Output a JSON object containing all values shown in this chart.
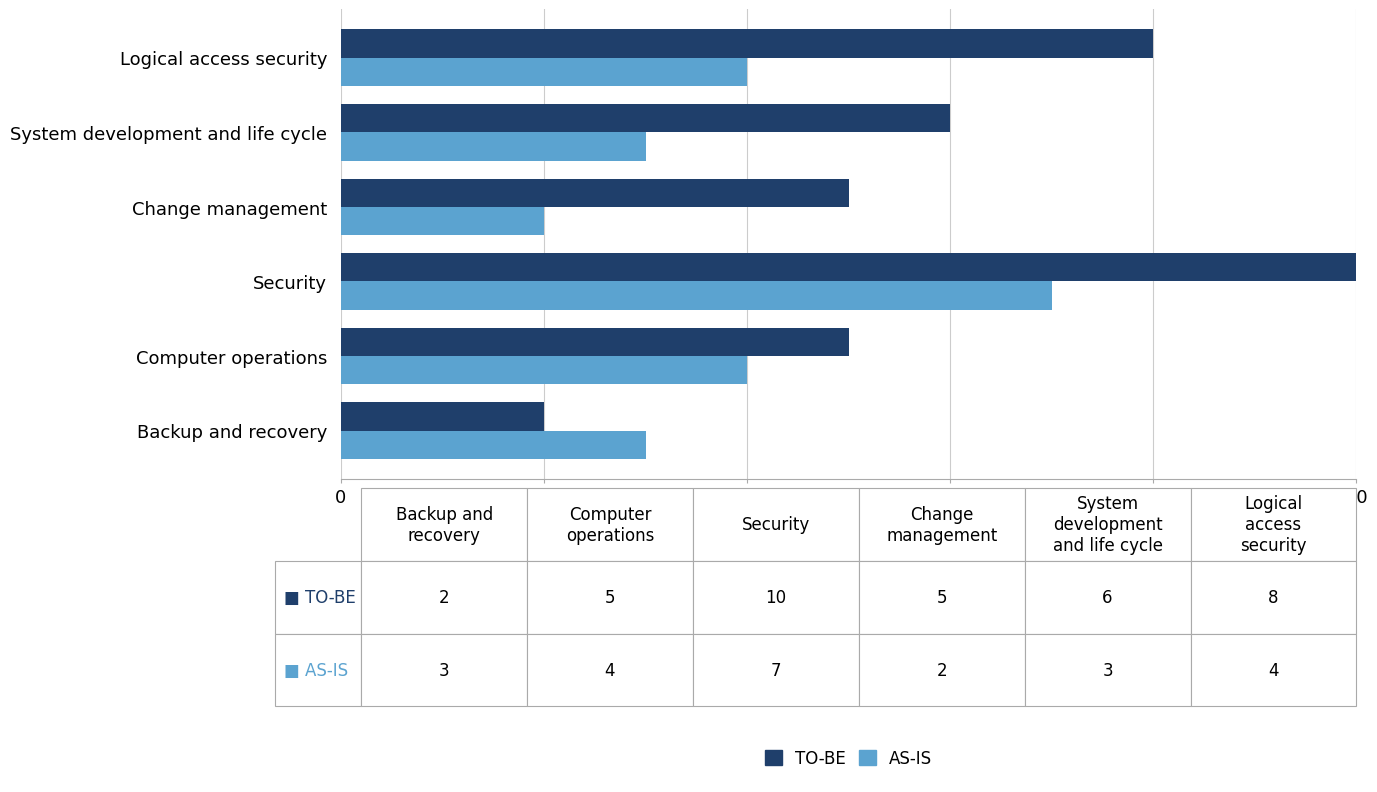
{
  "categories": [
    "Backup and recovery",
    "Computer operations",
    "Security",
    "Change management",
    "System development and life cycle",
    "Logical access security"
  ],
  "tobe_values": [
    2,
    5,
    10,
    5,
    6,
    8
  ],
  "asis_values": [
    3,
    4,
    7,
    2,
    3,
    4
  ],
  "tobe_color": "#1F3F6B",
  "asis_color": "#5BA3D0",
  "xlim": [
    0,
    10
  ],
  "xticks": [
    0,
    2,
    4,
    6,
    8,
    10
  ],
  "bar_height": 0.38,
  "table_col_headers": [
    "Backup and\nrecovery",
    "Computer\noperations",
    "Security",
    "Change\nmanagement",
    "System\ndevelopment\nand life cycle",
    "Logical\naccess\nsecurity"
  ],
  "table_row_headers": [
    "TO-BE",
    "AS-IS"
  ],
  "table_tobe_values": [
    "2",
    "5",
    "10",
    "5",
    "6",
    "8"
  ],
  "table_asis_values": [
    "3",
    "4",
    "7",
    "2",
    "3",
    "4"
  ],
  "legend_tobe_label": "TO-BE",
  "legend_asis_label": "AS-IS",
  "background_color": "#ffffff",
  "grid_color": "#cccccc"
}
